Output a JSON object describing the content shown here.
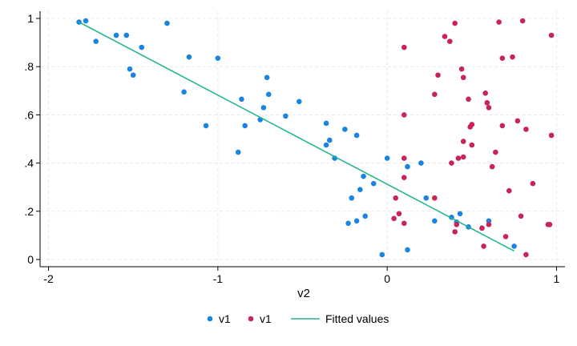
{
  "chart_data": {
    "type": "scatter",
    "xlabel": "v2",
    "ylabel": "",
    "xlim": [
      -2.05,
      1.05
    ],
    "ylim": [
      -0.03,
      1.03
    ],
    "x_ticks": [
      {
        "value": -2,
        "label": "-2"
      },
      {
        "value": -1,
        "label": "-1"
      },
      {
        "value": 0,
        "label": "0"
      },
      {
        "value": 1,
        "label": "1"
      }
    ],
    "y_ticks": [
      {
        "value": 0,
        "label": "0"
      },
      {
        "value": 0.2,
        "label": ".2"
      },
      {
        "value": 0.4,
        "label": ".4"
      },
      {
        "value": 0.6,
        "label": ".6"
      },
      {
        "value": 0.8,
        "label": ".8"
      },
      {
        "value": 1,
        "label": "1"
      }
    ],
    "grid": true,
    "legend_position": "bottom",
    "series": [
      {
        "name": "v1",
        "color": "#1a85e0",
        "kind": "scatter",
        "points": [
          [
            -1.82,
            0.985
          ],
          [
            -1.78,
            0.99
          ],
          [
            -1.72,
            0.905
          ],
          [
            -1.6,
            0.93
          ],
          [
            -1.54,
            0.93
          ],
          [
            -1.52,
            0.79
          ],
          [
            -1.5,
            0.765
          ],
          [
            -1.45,
            0.88
          ],
          [
            -1.3,
            0.98
          ],
          [
            -1.17,
            0.84
          ],
          [
            -1.2,
            0.695
          ],
          [
            -1.07,
            0.555
          ],
          [
            -1.0,
            0.835
          ],
          [
            -0.86,
            0.665
          ],
          [
            -0.88,
            0.445
          ],
          [
            -0.84,
            0.555
          ],
          [
            -0.75,
            0.58
          ],
          [
            -0.73,
            0.63
          ],
          [
            -0.71,
            0.755
          ],
          [
            -0.7,
            0.685
          ],
          [
            -0.6,
            0.595
          ],
          [
            -0.52,
            0.655
          ],
          [
            -0.36,
            0.565
          ],
          [
            -0.36,
            0.475
          ],
          [
            -0.34,
            0.495
          ],
          [
            -0.31,
            0.42
          ],
          [
            -0.25,
            0.54
          ],
          [
            -0.18,
            0.515
          ],
          [
            -0.23,
            0.15
          ],
          [
            -0.21,
            0.255
          ],
          [
            -0.18,
            0.16
          ],
          [
            -0.16,
            0.29
          ],
          [
            -0.14,
            0.345
          ],
          [
            -0.13,
            0.18
          ],
          [
            -0.08,
            0.315
          ],
          [
            -0.03,
            0.02
          ],
          [
            0.0,
            0.42
          ],
          [
            0.12,
            0.04
          ],
          [
            0.12,
            0.385
          ],
          [
            0.2,
            0.4
          ],
          [
            0.23,
            0.255
          ],
          [
            0.28,
            0.16
          ],
          [
            0.38,
            0.175
          ],
          [
            0.41,
            0.155
          ],
          [
            0.43,
            0.19
          ],
          [
            0.48,
            0.135
          ],
          [
            0.56,
            0.13
          ],
          [
            0.6,
            0.16
          ],
          [
            0.75,
            0.055
          ]
        ]
      },
      {
        "name": "v1",
        "color": "#c8245a",
        "kind": "scatter",
        "points": [
          [
            0.04,
            0.17
          ],
          [
            0.05,
            0.255
          ],
          [
            0.07,
            0.19
          ],
          [
            0.1,
            0.88
          ],
          [
            0.1,
            0.6
          ],
          [
            0.1,
            0.42
          ],
          [
            0.1,
            0.34
          ],
          [
            0.1,
            0.15
          ],
          [
            0.28,
            0.685
          ],
          [
            0.28,
            0.255
          ],
          [
            0.3,
            0.765
          ],
          [
            0.34,
            0.925
          ],
          [
            0.37,
            0.905
          ],
          [
            0.38,
            0.4
          ],
          [
            0.4,
            0.98
          ],
          [
            0.4,
            0.115
          ],
          [
            0.41,
            0.145
          ],
          [
            0.42,
            0.42
          ],
          [
            0.44,
            0.79
          ],
          [
            0.45,
            0.755
          ],
          [
            0.45,
            0.425
          ],
          [
            0.45,
            0.49
          ],
          [
            0.48,
            0.665
          ],
          [
            0.49,
            0.55
          ],
          [
            0.5,
            0.475
          ],
          [
            0.5,
            0.56
          ],
          [
            0.56,
            0.13
          ],
          [
            0.57,
            0.055
          ],
          [
            0.58,
            0.69
          ],
          [
            0.59,
            0.65
          ],
          [
            0.6,
            0.63
          ],
          [
            0.6,
            0.145
          ],
          [
            0.62,
            0.385
          ],
          [
            0.64,
            0.445
          ],
          [
            0.66,
            0.985
          ],
          [
            0.68,
            0.835
          ],
          [
            0.68,
            0.555
          ],
          [
            0.7,
            0.095
          ],
          [
            0.72,
            0.285
          ],
          [
            0.74,
            0.84
          ],
          [
            0.77,
            0.575
          ],
          [
            0.79,
            0.18
          ],
          [
            0.8,
            0.99
          ],
          [
            0.82,
            0.54
          ],
          [
            0.82,
            0.02
          ],
          [
            0.86,
            0.315
          ],
          [
            0.95,
            0.145
          ],
          [
            0.96,
            0.145
          ],
          [
            0.97,
            0.93
          ],
          [
            0.97,
            0.515
          ]
        ]
      },
      {
        "name": "Fitted values",
        "color": "#1fb58f",
        "kind": "line",
        "points": [
          [
            -1.82,
            0.985
          ],
          [
            0.75,
            0.035
          ]
        ]
      }
    ]
  }
}
